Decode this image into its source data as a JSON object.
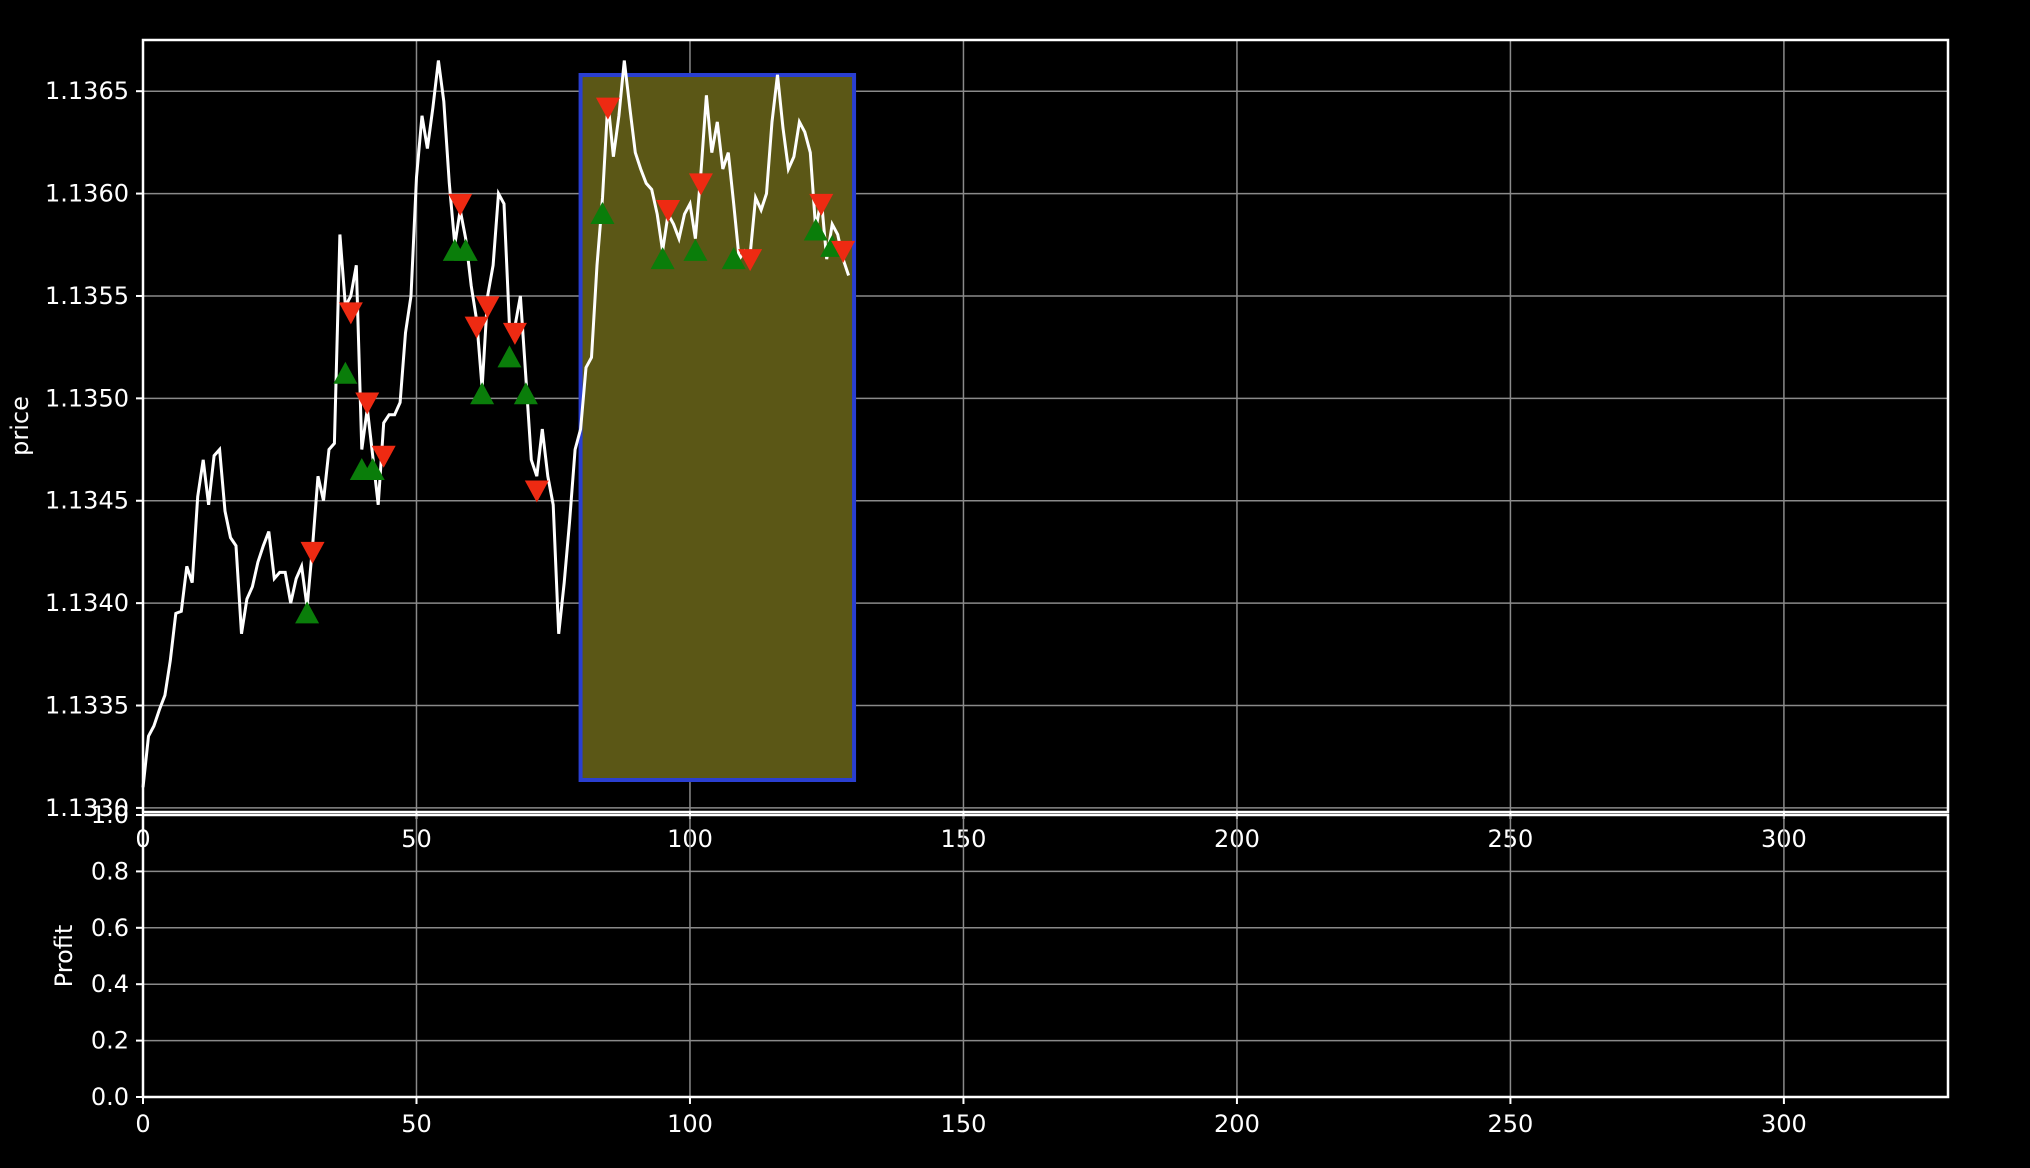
{
  "chart_data": [
    {
      "type": "line",
      "ylabel": "price",
      "xlim": [
        0,
        330
      ],
      "ylim": [
        1.13298,
        1.13675
      ],
      "grid": true,
      "colors": {
        "background": "#000000",
        "line": "#ffffff",
        "grid": "#8a8a8a",
        "buy": "#0a7d0a",
        "sell": "#ee2a12",
        "window_fill": "#5b5716",
        "window_edge": "#2a3fd0"
      },
      "x_ticks": [
        0,
        50,
        100,
        150,
        200,
        250,
        300
      ],
      "x_tick_labels": [
        "0",
        "50",
        "100",
        "150",
        "200",
        "250",
        "300"
      ],
      "y_ticks": [
        1.133,
        1.1335,
        1.134,
        1.1345,
        1.135,
        1.1355,
        1.136,
        1.1365
      ],
      "y_tick_labels": [
        "1.1330",
        "1.1335",
        "1.1340",
        "1.1345",
        "1.1350",
        "1.1355",
        "1.1360",
        "1.1365"
      ],
      "series": [
        {
          "points": [
            [
              0,
              1.1331
            ],
            [
              1,
              1.13335
            ],
            [
              2,
              1.1334
            ],
            [
              3,
              1.13348
            ],
            [
              4,
              1.13355
            ],
            [
              5,
              1.13372
            ],
            [
              6,
              1.13395
            ],
            [
              7,
              1.13396
            ],
            [
              8,
              1.13418
            ],
            [
              9,
              1.1341
            ],
            [
              10,
              1.13452
            ],
            [
              11,
              1.1347
            ],
            [
              12,
              1.13448
            ],
            [
              13,
              1.13472
            ],
            [
              14,
              1.13475
            ],
            [
              15,
              1.13445
            ],
            [
              16,
              1.13432
            ],
            [
              17,
              1.13428
            ],
            [
              18,
              1.13385
            ],
            [
              19,
              1.13402
            ],
            [
              20,
              1.13408
            ],
            [
              21,
              1.1342
            ],
            [
              22,
              1.13428
            ],
            [
              23,
              1.13435
            ],
            [
              24,
              1.13412
            ],
            [
              25,
              1.13415
            ],
            [
              26,
              1.13415
            ],
            [
              27,
              1.134
            ],
            [
              28,
              1.13412
            ],
            [
              29,
              1.13418
            ],
            [
              30,
              1.13398
            ],
            [
              31,
              1.13428
            ],
            [
              32,
              1.13462
            ],
            [
              33,
              1.1345
            ],
            [
              34,
              1.13475
            ],
            [
              35,
              1.13478
            ],
            [
              36,
              1.1358
            ],
            [
              37,
              1.13545
            ],
            [
              38,
              1.1355
            ],
            [
              39,
              1.13565
            ],
            [
              40,
              1.13475
            ],
            [
              41,
              1.13495
            ],
            [
              42,
              1.13472
            ],
            [
              43,
              1.13448
            ],
            [
              44,
              1.13488
            ],
            [
              45,
              1.13492
            ],
            [
              46,
              1.13492
            ],
            [
              47,
              1.13498
            ],
            [
              48,
              1.13532
            ],
            [
              49,
              1.1355
            ],
            [
              50,
              1.13608
            ],
            [
              51,
              1.13638
            ],
            [
              52,
              1.13622
            ],
            [
              53,
              1.13642
            ],
            [
              54,
              1.13665
            ],
            [
              55,
              1.13645
            ],
            [
              56,
              1.13605
            ],
            [
              57,
              1.13575
            ],
            [
              58,
              1.13592
            ],
            [
              59,
              1.13578
            ],
            [
              60,
              1.13555
            ],
            [
              61,
              1.13538
            ],
            [
              62,
              1.13505
            ],
            [
              63,
              1.1355
            ],
            [
              64,
              1.13565
            ],
            [
              65,
              1.136
            ],
            [
              66,
              1.13595
            ],
            [
              67,
              1.13535
            ],
            [
              68,
              1.13535
            ],
            [
              69,
              1.1355
            ],
            [
              70,
              1.1351
            ],
            [
              71,
              1.1347
            ],
            [
              72,
              1.13462
            ],
            [
              73,
              1.13485
            ],
            [
              74,
              1.13462
            ],
            [
              75,
              1.13448
            ],
            [
              76,
              1.13385
            ],
            [
              77,
              1.1341
            ],
            [
              78,
              1.1344
            ],
            [
              79,
              1.13475
            ],
            [
              80,
              1.13485
            ],
            [
              81,
              1.13515
            ],
            [
              82,
              1.1352
            ],
            [
              83,
              1.13565
            ],
            [
              84,
              1.13598
            ],
            [
              85,
              1.13645
            ],
            [
              86,
              1.13618
            ],
            [
              87,
              1.13638
            ],
            [
              88,
              1.13665
            ],
            [
              89,
              1.13642
            ],
            [
              90,
              1.1362
            ],
            [
              91,
              1.13612
            ],
            [
              92,
              1.13605
            ],
            [
              93,
              1.13602
            ],
            [
              94,
              1.1359
            ],
            [
              95,
              1.13572
            ],
            [
              96,
              1.1359
            ],
            [
              97,
              1.13585
            ],
            [
              98,
              1.13578
            ],
            [
              99,
              1.1359
            ],
            [
              100,
              1.13595
            ],
            [
              101,
              1.13578
            ],
            [
              102,
              1.1361
            ],
            [
              103,
              1.13648
            ],
            [
              104,
              1.1362
            ],
            [
              105,
              1.13635
            ],
            [
              106,
              1.13612
            ],
            [
              107,
              1.1362
            ],
            [
              108,
              1.13595
            ],
            [
              109,
              1.13568
            ],
            [
              110,
              1.13572
            ],
            [
              111,
              1.1357
            ],
            [
              112,
              1.13598
            ],
            [
              113,
              1.13592
            ],
            [
              114,
              1.136
            ],
            [
              115,
              1.13635
            ],
            [
              116,
              1.13658
            ],
            [
              117,
              1.13632
            ],
            [
              118,
              1.13612
            ],
            [
              119,
              1.13618
            ],
            [
              120,
              1.13635
            ],
            [
              121,
              1.1363
            ],
            [
              122,
              1.1362
            ],
            [
              123,
              1.13582
            ],
            [
              124,
              1.13598
            ],
            [
              125,
              1.13568
            ],
            [
              126,
              1.13585
            ],
            [
              127,
              1.1358
            ],
            [
              128,
              1.13568
            ],
            [
              129,
              1.1356
            ]
          ]
        }
      ],
      "buy_markers": [
        [
          30,
          1.13395
        ],
        [
          37,
          1.13512
        ],
        [
          40,
          1.13465
        ],
        [
          42,
          1.13465
        ],
        [
          57,
          1.13572
        ],
        [
          59,
          1.13572
        ],
        [
          62,
          1.13502
        ],
        [
          67,
          1.1352
        ],
        [
          70,
          1.13502
        ],
        [
          84,
          1.1359
        ],
        [
          95,
          1.13568
        ],
        [
          101,
          1.13572
        ],
        [
          108,
          1.13568
        ],
        [
          123,
          1.13582
        ],
        [
          126,
          1.13574
        ]
      ],
      "sell_markers": [
        [
          31,
          1.13425
        ],
        [
          38,
          1.13542
        ],
        [
          41,
          1.13498
        ],
        [
          44,
          1.13472
        ],
        [
          58,
          1.13595
        ],
        [
          61,
          1.13535
        ],
        [
          63,
          1.13545
        ],
        [
          68,
          1.13532
        ],
        [
          72,
          1.13455
        ],
        [
          85,
          1.13642
        ],
        [
          96,
          1.13592
        ],
        [
          102,
          1.13605
        ],
        [
          111,
          1.13568
        ],
        [
          124,
          1.13595
        ],
        [
          128,
          1.13572
        ]
      ],
      "highlight_window": {
        "x_start": 80,
        "x_end": 130
      }
    },
    {
      "type": "line",
      "ylabel": "Profit",
      "xlim": [
        0,
        330
      ],
      "ylim": [
        0.0,
        1.0
      ],
      "grid": true,
      "x_ticks": [
        0,
        50,
        100,
        150,
        200,
        250,
        300
      ],
      "x_tick_labels": [
        "0",
        "50",
        "100",
        "150",
        "200",
        "250",
        "300"
      ],
      "y_ticks": [
        0.0,
        0.2,
        0.4,
        0.6,
        0.8,
        1.0
      ],
      "y_tick_labels": [
        "0.0",
        "0.2",
        "0.4",
        "0.6",
        "0.8",
        "1.0"
      ],
      "series": []
    }
  ]
}
